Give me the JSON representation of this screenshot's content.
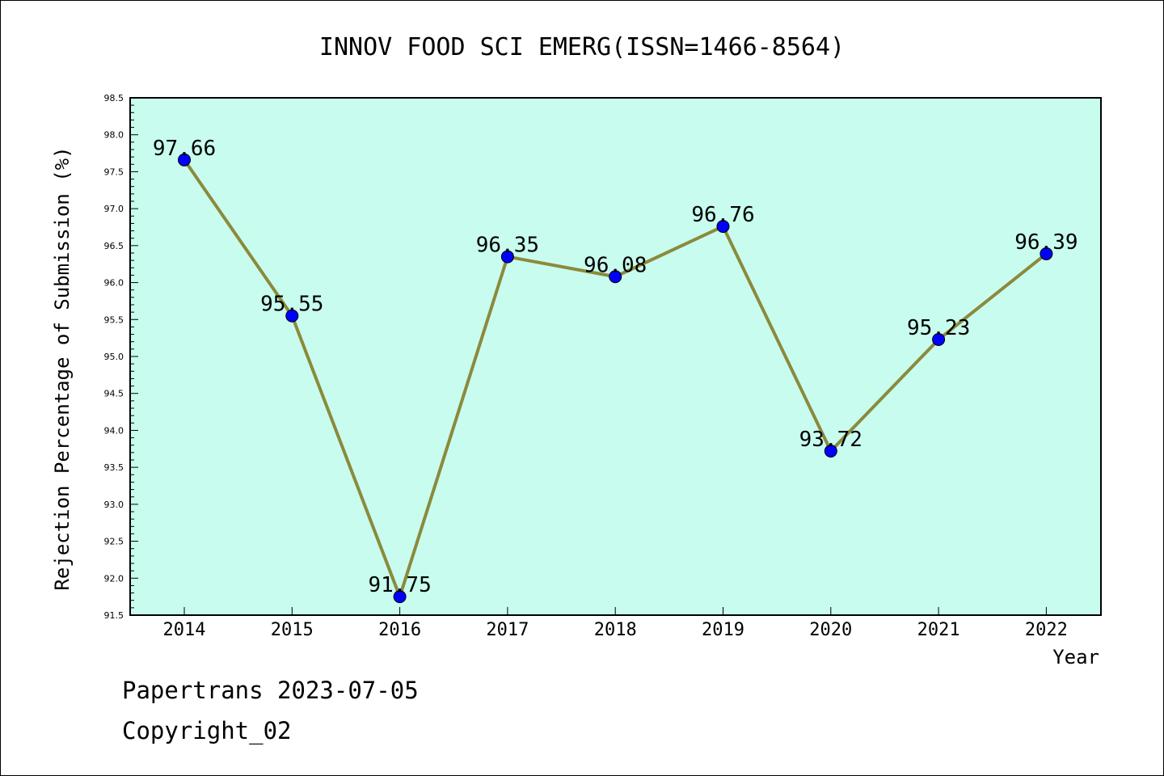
{
  "chart_data": {
    "type": "line",
    "title": "INNOV FOOD SCI EMERG(ISSN=1466-8564)",
    "xlabel": "Year",
    "ylabel": "Rejection Percentage of Submission (%)",
    "categories": [
      "2014",
      "2015",
      "2016",
      "2017",
      "2018",
      "2019",
      "2020",
      "2021",
      "2022"
    ],
    "values": [
      97.66,
      95.55,
      91.75,
      96.35,
      96.08,
      96.76,
      93.72,
      95.23,
      96.39
    ],
    "data_labels": [
      "97.66",
      "95.55",
      "91.75",
      "96.35",
      "96.08",
      "96.76",
      "93.72",
      "95.23",
      "96.39"
    ],
    "ylim": [
      91.5,
      98.5
    ],
    "yticks": [
      "91.5",
      "92.0",
      "92.5",
      "93.0",
      "93.5",
      "94.0",
      "94.5",
      "95.0",
      "95.5",
      "96.0",
      "96.5",
      "97.0",
      "97.5",
      "98.0",
      "98.5"
    ],
    "grid": false,
    "colors": {
      "plot_background": "#c8fcee",
      "line": "#8b8a3c",
      "marker": "#0000ff"
    }
  },
  "footer": {
    "line1": "Papertrans 2023-07-05",
    "line2": "Copyright_02"
  }
}
